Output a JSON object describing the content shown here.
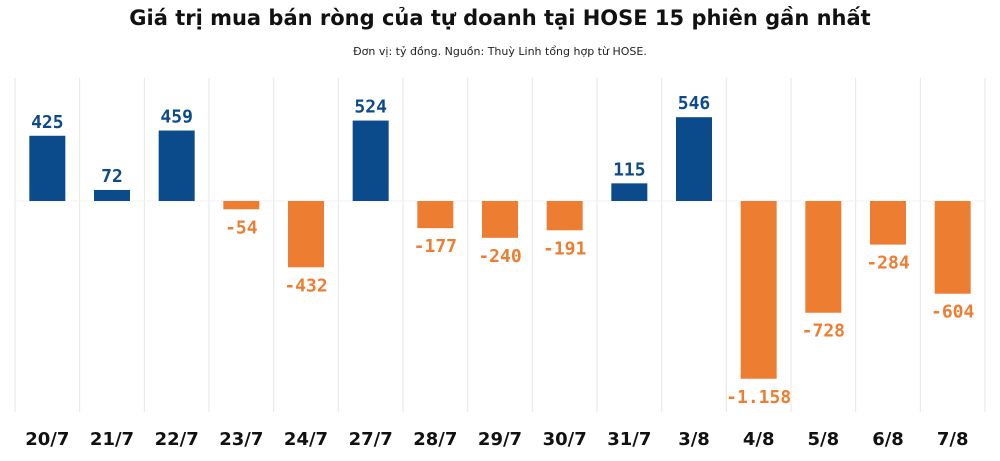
{
  "title": "Giá trị mua bán ròng của tự doanh tại HOSE 15 phiên gần nhất",
  "subtitle": "Đơn vị: tỷ đồng. Nguồn: Thuỳ Linh tổng hợp từ HOSE.",
  "colors": {
    "positive": "#0b4a8b",
    "negative": "#ed7d31",
    "grid": "#e6e6e6"
  },
  "chart_data": {
    "type": "bar",
    "title": "Giá trị mua bán ròng của tự doanh tại HOSE 15 phiên gần nhất",
    "subtitle": "Đơn vị: tỷ đồng. Nguồn: Thuỳ Linh tổng hợp từ HOSE.",
    "categories": [
      "20/7",
      "21/7",
      "22/7",
      "23/7",
      "24/7",
      "27/7",
      "28/7",
      "29/7",
      "30/7",
      "31/7",
      "3/8",
      "4/8",
      "5/8",
      "6/8",
      "7/8"
    ],
    "values": [
      425,
      72,
      459,
      -54,
      -432,
      524,
      -177,
      -240,
      -191,
      115,
      546,
      -1158,
      -728,
      -284,
      -604
    ],
    "value_labels": [
      "425",
      "72",
      "459",
      "-54",
      "-432",
      "524",
      "-177",
      "-240",
      "-191",
      "115",
      "546",
      "-1.158",
      "-728",
      "-284",
      "-604"
    ],
    "xlabel": "",
    "ylabel": "",
    "grid": "vertical separators",
    "legend": "none"
  }
}
